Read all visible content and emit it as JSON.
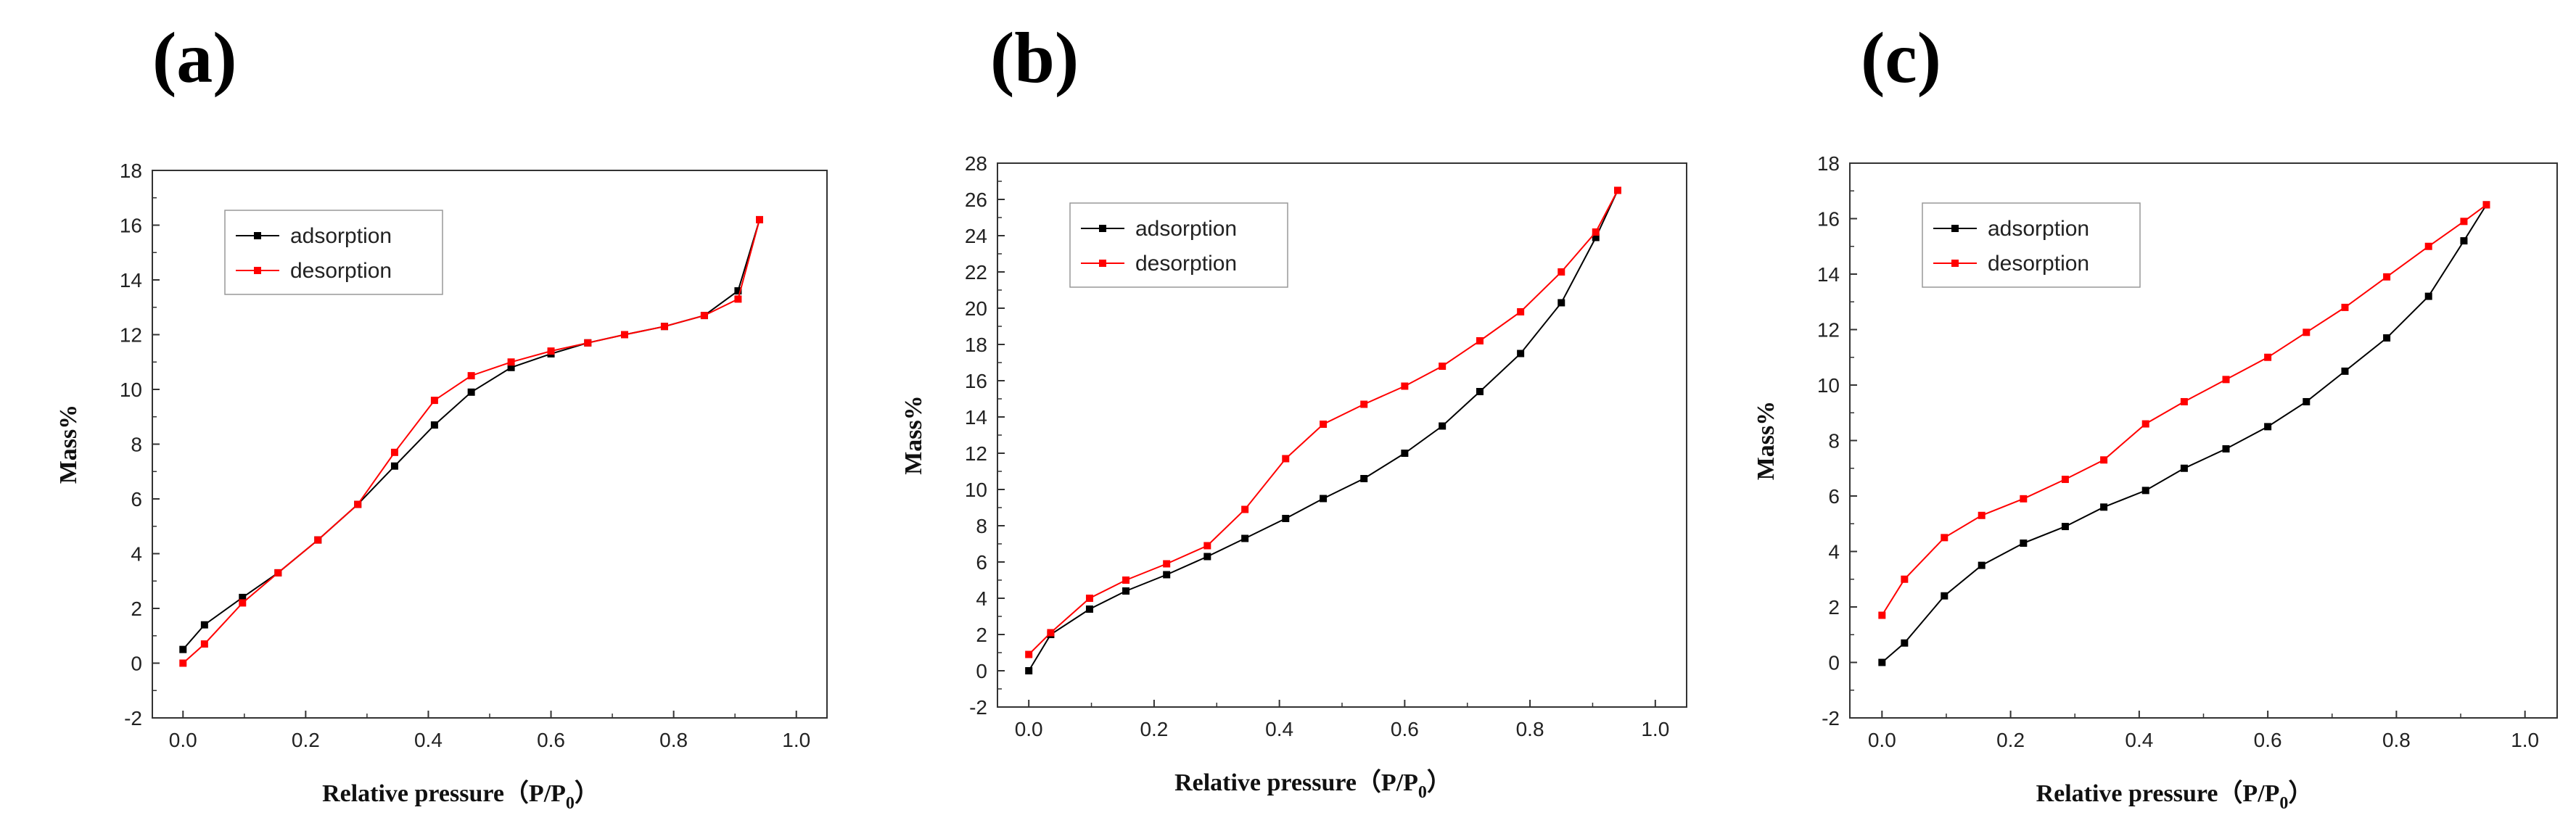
{
  "panels": [
    {
      "label": "(a)"
    },
    {
      "label": "(b)"
    },
    {
      "label": "(c)"
    }
  ],
  "chart_data": [
    {
      "type": "line",
      "title": "",
      "xlabel": "Relative pressure（P/P0）",
      "ylabel": "Mass%",
      "xlim": [
        -0.05,
        1.05
      ],
      "ylim": [
        -2,
        18
      ],
      "xticks": [
        0.0,
        0.2,
        0.4,
        0.6,
        0.8,
        1.0
      ],
      "yticks": [
        -2,
        0,
        2,
        4,
        6,
        8,
        10,
        12,
        14,
        16,
        18
      ],
      "legend": "top-left",
      "series": [
        {
          "name": "adsorption",
          "color": "#000000",
          "x": [
            0.0,
            0.035,
            0.097,
            0.155,
            0.22,
            0.285,
            0.345,
            0.41,
            0.47,
            0.535,
            0.6,
            0.66,
            0.72,
            0.785,
            0.85,
            0.905,
            0.94
          ],
          "y": [
            0.5,
            1.4,
            2.4,
            3.3,
            4.5,
            5.8,
            7.2,
            8.7,
            9.9,
            10.8,
            11.3,
            11.7,
            12.0,
            12.3,
            12.7,
            13.6,
            16.2
          ]
        },
        {
          "name": "desorption",
          "color": "#ff0000",
          "x": [
            0.0,
            0.035,
            0.097,
            0.155,
            0.22,
            0.285,
            0.345,
            0.41,
            0.47,
            0.535,
            0.6,
            0.66,
            0.72,
            0.785,
            0.85,
            0.905,
            0.94
          ],
          "y": [
            0.0,
            0.7,
            2.2,
            3.3,
            4.5,
            5.8,
            7.7,
            9.6,
            10.5,
            11.0,
            11.4,
            11.7,
            12.0,
            12.3,
            12.7,
            13.3,
            16.2
          ]
        }
      ]
    },
    {
      "type": "line",
      "title": "",
      "xlabel": "Relative pressure（P/P0）",
      "ylabel": "Mass%",
      "xlim": [
        -0.05,
        1.05
      ],
      "ylim": [
        -2,
        28
      ],
      "xticks": [
        0.0,
        0.2,
        0.4,
        0.6,
        0.8,
        1.0
      ],
      "yticks": [
        -2,
        0,
        2,
        4,
        6,
        8,
        10,
        12,
        14,
        16,
        18,
        20,
        22,
        24,
        26,
        28
      ],
      "legend": "top-left",
      "series": [
        {
          "name": "adsorption",
          "color": "#000000",
          "x": [
            0.0,
            0.035,
            0.097,
            0.155,
            0.22,
            0.285,
            0.345,
            0.41,
            0.47,
            0.535,
            0.6,
            0.66,
            0.72,
            0.785,
            0.85,
            0.905,
            0.94
          ],
          "y": [
            0.0,
            2.0,
            3.4,
            4.4,
            5.3,
            6.3,
            7.3,
            8.4,
            9.5,
            10.6,
            12.0,
            13.5,
            15.4,
            17.5,
            20.3,
            23.9,
            26.5
          ]
        },
        {
          "name": "desorption",
          "color": "#ff0000",
          "x": [
            0.0,
            0.035,
            0.097,
            0.155,
            0.22,
            0.285,
            0.345,
            0.41,
            0.47,
            0.535,
            0.6,
            0.66,
            0.72,
            0.785,
            0.85,
            0.905,
            0.94
          ],
          "y": [
            0.9,
            2.1,
            4.0,
            5.0,
            5.9,
            6.9,
            8.9,
            11.7,
            13.6,
            14.7,
            15.7,
            16.8,
            18.2,
            19.8,
            22.0,
            24.2,
            26.5
          ]
        }
      ]
    },
    {
      "type": "line",
      "title": "",
      "xlabel": "Relative pressure（P/P0）",
      "ylabel": "Mass%",
      "xlim": [
        -0.05,
        1.05
      ],
      "ylim": [
        -2,
        18
      ],
      "xticks": [
        0.0,
        0.2,
        0.4,
        0.6,
        0.8,
        1.0
      ],
      "yticks": [
        -2,
        0,
        2,
        4,
        6,
        8,
        10,
        12,
        14,
        16,
        18
      ],
      "legend": "top-left",
      "series": [
        {
          "name": "adsorption",
          "color": "#000000",
          "x": [
            0.0,
            0.035,
            0.097,
            0.155,
            0.22,
            0.285,
            0.345,
            0.41,
            0.47,
            0.535,
            0.6,
            0.66,
            0.72,
            0.785,
            0.85,
            0.905,
            0.94
          ],
          "y": [
            0.0,
            0.7,
            2.4,
            3.5,
            4.3,
            4.9,
            5.6,
            6.2,
            7.0,
            7.7,
            8.5,
            9.4,
            10.5,
            11.7,
            13.2,
            15.2,
            16.5
          ]
        },
        {
          "name": "desorption",
          "color": "#ff0000",
          "x": [
            0.0,
            0.035,
            0.097,
            0.155,
            0.22,
            0.285,
            0.345,
            0.41,
            0.47,
            0.535,
            0.6,
            0.66,
            0.72,
            0.785,
            0.85,
            0.905,
            0.94
          ],
          "y": [
            1.7,
            3.0,
            4.5,
            5.3,
            5.9,
            6.6,
            7.3,
            8.6,
            9.4,
            10.2,
            11.0,
            11.9,
            12.8,
            13.9,
            15.0,
            15.9,
            16.5
          ]
        }
      ]
    }
  ]
}
